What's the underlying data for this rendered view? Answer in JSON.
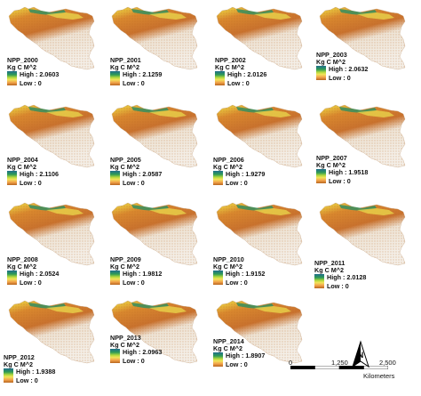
{
  "panels": [
    {
      "title": "NPP_2000",
      "unit": "Kg C  M^2",
      "high": "High : 2.0603",
      "low": "Low : 0"
    },
    {
      "title": "NPP_2001",
      "unit": "Kg C  M^2",
      "high": "High : 2.1259",
      "low": "Low : 0"
    },
    {
      "title": "NPP_2002",
      "unit": "Kg C  M^2",
      "high": "High : 2.0126",
      "low": "Low : 0"
    },
    {
      "title": "NPP_2003",
      "unit": "Kg C  M^2",
      "high": "High : 2.0632",
      "low": "Low : 0"
    },
    {
      "title": "NPP_2004",
      "unit": "Kg C  M^2",
      "high": "High : 2.1106",
      "low": "Low : 0"
    },
    {
      "title": "NPP_2005",
      "unit": "Kg C  M^2",
      "high": "High : 2.0587",
      "low": "Low : 0"
    },
    {
      "title": "NPP_2006",
      "unit": "Kg C  M^2",
      "high": "High : 1.9279",
      "low": "Low : 0"
    },
    {
      "title": "NPP_2007",
      "unit": "Kg C  M^2",
      "high": "High : 1.9518",
      "low": "Low : 0"
    },
    {
      "title": "NPP_2008",
      "unit": "Kg C  M^2",
      "high": "High : 2.0524",
      "low": "Low : 0"
    },
    {
      "title": "NPP_2009",
      "unit": "Kg C  M^2",
      "high": "High : 1.9812",
      "low": "Low : 0"
    },
    {
      "title": "NPP_2010",
      "unit": "Kg C  M^2",
      "high": "High : 1.9152",
      "low": "Low : 0"
    },
    {
      "title": "NPP_2011",
      "unit": "Kg C  M^2",
      "high": "High : 2.0128",
      "low": "Low : 0"
    },
    {
      "title": "NPP_2012",
      "unit": "Kg C  M^2",
      "high": "High : 1.9388",
      "low": "Low : 0"
    },
    {
      "title": "NPP_2013",
      "unit": "Kg C  M^2",
      "high": "High : 2.0963",
      "low": "Low : 0"
    },
    {
      "title": "NPP_2014",
      "unit": "Kg C  M^2",
      "high": "High : 1.8907",
      "low": "Low : 0"
    }
  ],
  "scale": {
    "labels": [
      "0",
      "1,250",
      "2,500"
    ],
    "unit": "Kilometers"
  },
  "north_label": "N",
  "colors": {
    "ramp_high": "#1f6e8c",
    "ramp_mid": "#f3e35b",
    "ramp_low": "#b8661f",
    "map_dry": "#c9722e"
  }
}
